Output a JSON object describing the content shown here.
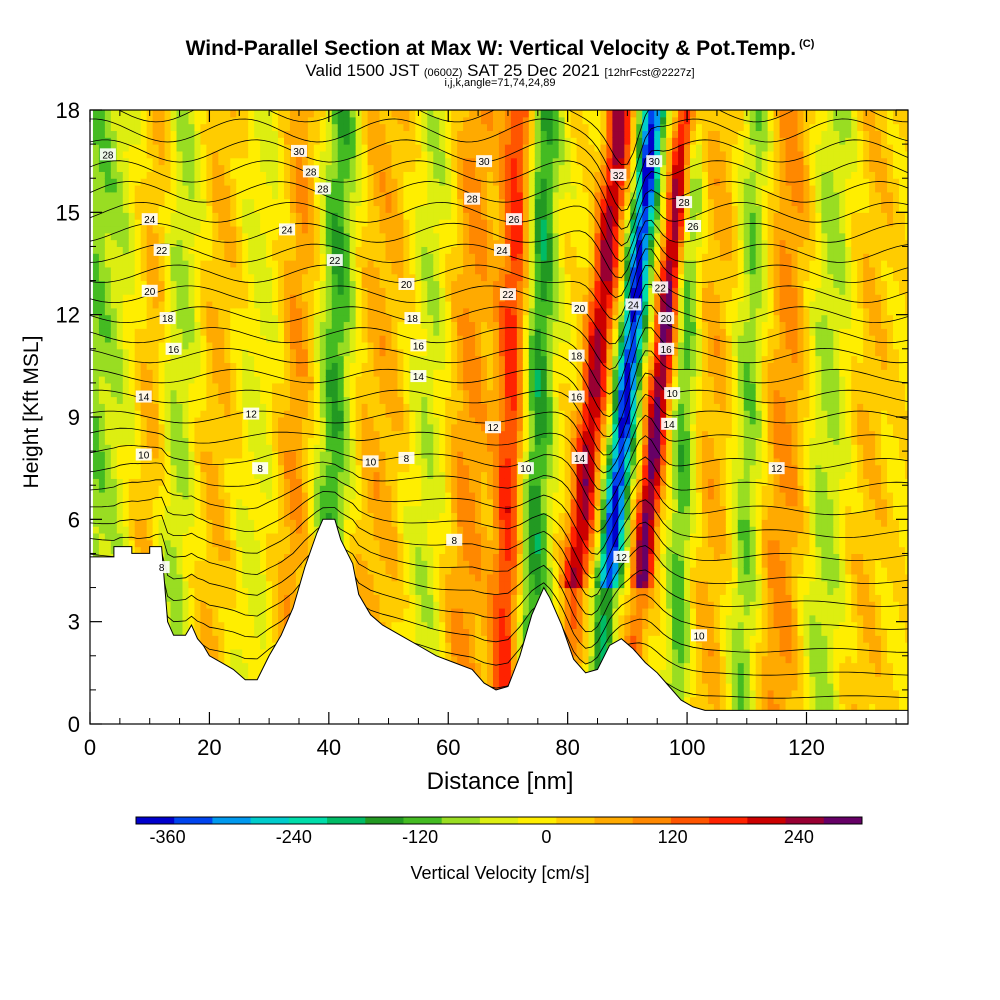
{
  "header": {
    "title": "Wind-Parallel Section at Max W: Vertical Velocity & Pot.Temp.",
    "title_tag": "(C)",
    "subtitle_a": "Valid 1500 JST",
    "subtitle_b": "(0600Z)",
    "subtitle_c": "SAT 25 Dec 2021",
    "subtitle_d": "[12hrFcst@2227z]",
    "params": "i,j,k,angle=71,74,24,89"
  },
  "chart_data": {
    "type": "heatmap",
    "title": "Wind-Parallel Section at Max W: Vertical Velocity & Pot.Temp.",
    "xlabel": "Distance [nm]",
    "ylabel": "Height [Kft MSL]",
    "colorbar_label": "Vertical Velocity [cm/s]",
    "xlim": [
      0,
      137
    ],
    "ylim": [
      0,
      18
    ],
    "xticks": [
      0,
      20,
      40,
      60,
      80,
      100,
      120
    ],
    "yticks": [
      0,
      3,
      6,
      9,
      12,
      15,
      18
    ],
    "colorbar": {
      "ticks": [
        -360,
        -240,
        -120,
        0,
        120,
        240
      ],
      "min": -390,
      "max": 300,
      "colors": [
        "#0000cc",
        "#0044ee",
        "#0099ee",
        "#00cccc",
        "#00ddaa",
        "#00bb66",
        "#229922",
        "#44bb22",
        "#99dd22",
        "#ddee11",
        "#ffee00",
        "#ffcc00",
        "#ffaa00",
        "#ff8800",
        "#ff5500",
        "#ff2200",
        "#cc0000",
        "#990033",
        "#660066"
      ],
      "bins": [
        -390,
        -360,
        -330,
        -300,
        -270,
        -240,
        -210,
        -180,
        -150,
        -120,
        -90,
        -60,
        -30,
        0,
        30,
        60,
        90,
        120,
        150,
        180,
        210,
        240,
        270,
        300
      ]
    },
    "terrain_kft": [
      [
        0,
        4.9
      ],
      [
        4,
        4.9
      ],
      [
        4,
        5.2
      ],
      [
        7,
        5.2
      ],
      [
        7,
        5.0
      ],
      [
        10,
        5.0
      ],
      [
        10,
        5.2
      ],
      [
        12,
        5.2
      ],
      [
        13,
        3.0
      ],
      [
        14,
        2.6
      ],
      [
        16,
        2.6
      ],
      [
        17,
        2.9
      ],
      [
        18,
        2.5
      ],
      [
        19,
        2.3
      ],
      [
        20,
        2.0
      ],
      [
        22,
        1.8
      ],
      [
        24,
        1.6
      ],
      [
        26,
        1.3
      ],
      [
        28,
        1.3
      ],
      [
        30,
        2.0
      ],
      [
        32,
        2.6
      ],
      [
        34,
        3.4
      ],
      [
        36,
        4.6
      ],
      [
        38,
        5.6
      ],
      [
        39,
        6.0
      ],
      [
        41,
        6.0
      ],
      [
        42,
        5.4
      ],
      [
        44,
        4.7
      ],
      [
        45,
        3.8
      ],
      [
        47,
        3.2
      ],
      [
        49,
        2.9
      ],
      [
        52,
        2.6
      ],
      [
        55,
        2.3
      ],
      [
        58,
        2.0
      ],
      [
        61,
        1.8
      ],
      [
        64,
        1.6
      ],
      [
        66,
        1.2
      ],
      [
        68,
        1.0
      ],
      [
        70,
        1.1
      ],
      [
        72,
        2.0
      ],
      [
        74,
        3.2
      ],
      [
        76,
        4.0
      ],
      [
        77,
        3.7
      ],
      [
        79,
        2.9
      ],
      [
        81,
        1.9
      ],
      [
        83,
        1.5
      ],
      [
        85,
        1.6
      ],
      [
        87,
        2.3
      ],
      [
        89,
        2.5
      ],
      [
        91,
        2.2
      ],
      [
        93,
        1.8
      ],
      [
        95,
        1.5
      ],
      [
        97,
        1.1
      ],
      [
        99,
        0.7
      ],
      [
        101,
        0.5
      ],
      [
        103,
        0.4
      ],
      [
        105,
        0.4
      ],
      [
        137,
        0.4
      ]
    ],
    "w_features": [
      {
        "x": 0,
        "w": 6,
        "amp": -90
      },
      {
        "x": 10,
        "w": 3,
        "amp": 70
      },
      {
        "x": 14,
        "w": 3.5,
        "amp": -80
      },
      {
        "x": 21,
        "w": 4,
        "amp": 50
      },
      {
        "x": 27,
        "w": 4,
        "amp": -40
      },
      {
        "x": 34,
        "w": 3,
        "amp": 80
      },
      {
        "x": 40.5,
        "w": 3,
        "amp": -140
      },
      {
        "x": 48,
        "w": 5,
        "amp": 60
      },
      {
        "x": 56,
        "w": 3.5,
        "amp": -60
      },
      {
        "x": 63,
        "w": 3.5,
        "amp": 90
      },
      {
        "x": 70,
        "w": 2.5,
        "amp": 170
      },
      {
        "x": 74.5,
        "w": 2.5,
        "amp": -160
      },
      {
        "x": 83.5,
        "w": 2.2,
        "amp": 240
      },
      {
        "x": 89,
        "w": 2.0,
        "amp": -370
      },
      {
        "x": 94.5,
        "w": 1.8,
        "amp": 280
      },
      {
        "x": 99,
        "w": 2.0,
        "amp": -120
      },
      {
        "x": 104,
        "w": 3.0,
        "amp": 60
      },
      {
        "x": 110,
        "w": 2.5,
        "amp": -100
      },
      {
        "x": 116,
        "w": 4.0,
        "amp": 90
      },
      {
        "x": 123,
        "w": 3.5,
        "amp": -80
      },
      {
        "x": 130,
        "w": 4.0,
        "amp": 40
      }
    ],
    "contour_labels": [
      {
        "text": "28",
        "x": 3,
        "y": 16.7
      },
      {
        "text": "30",
        "x": 35,
        "y": 16.8
      },
      {
        "text": "28",
        "x": 37,
        "y": 16.2
      },
      {
        "text": "28",
        "x": 39,
        "y": 15.7
      },
      {
        "text": "30",
        "x": 66,
        "y": 16.5
      },
      {
        "text": "28",
        "x": 64,
        "y": 15.4
      },
      {
        "text": "26",
        "x": 71,
        "y": 14.8
      },
      {
        "text": "24",
        "x": 69,
        "y": 13.9
      },
      {
        "text": "22",
        "x": 70,
        "y": 12.6
      },
      {
        "text": "32",
        "x": 88.5,
        "y": 16.1
      },
      {
        "text": "30",
        "x": 94.5,
        "y": 16.5
      },
      {
        "text": "28",
        "x": 99.5,
        "y": 15.3
      },
      {
        "text": "26",
        "x": 101,
        "y": 14.6
      },
      {
        "text": "24",
        "x": 10,
        "y": 14.8
      },
      {
        "text": "24",
        "x": 33,
        "y": 14.5
      },
      {
        "text": "22",
        "x": 12,
        "y": 13.9
      },
      {
        "text": "22",
        "x": 41,
        "y": 13.6
      },
      {
        "text": "20",
        "x": 10,
        "y": 12.7
      },
      {
        "text": "20",
        "x": 53,
        "y": 12.9
      },
      {
        "text": "20",
        "x": 82,
        "y": 12.2
      },
      {
        "text": "24",
        "x": 91,
        "y": 12.3
      },
      {
        "text": "22",
        "x": 95.5,
        "y": 12.8
      },
      {
        "text": "20",
        "x": 96.5,
        "y": 11.9
      },
      {
        "text": "18",
        "x": 13,
        "y": 11.9
      },
      {
        "text": "18",
        "x": 54,
        "y": 11.9
      },
      {
        "text": "18",
        "x": 81.5,
        "y": 10.8
      },
      {
        "text": "16",
        "x": 14,
        "y": 11.0
      },
      {
        "text": "16",
        "x": 55,
        "y": 11.1
      },
      {
        "text": "16",
        "x": 96.5,
        "y": 11.0
      },
      {
        "text": "14",
        "x": 9,
        "y": 9.6
      },
      {
        "text": "14",
        "x": 55,
        "y": 10.2
      },
      {
        "text": "16",
        "x": 81.5,
        "y": 9.6
      },
      {
        "text": "10",
        "x": 97.5,
        "y": 9.7
      },
      {
        "text": "14",
        "x": 97,
        "y": 8.8
      },
      {
        "text": "12",
        "x": 27,
        "y": 9.1
      },
      {
        "text": "12",
        "x": 67.5,
        "y": 8.7
      },
      {
        "text": "10",
        "x": 9,
        "y": 7.9
      },
      {
        "text": "10",
        "x": 47,
        "y": 7.7
      },
      {
        "text": "10",
        "x": 73,
        "y": 7.5
      },
      {
        "text": "14",
        "x": 82,
        "y": 7.8
      },
      {
        "text": "12",
        "x": 115,
        "y": 7.5
      },
      {
        "text": "8",
        "x": 28.5,
        "y": 7.5
      },
      {
        "text": "8",
        "x": 53,
        "y": 7.8
      },
      {
        "text": "8",
        "x": 61,
        "y": 5.4
      },
      {
        "text": "12",
        "x": 89,
        "y": 4.9
      },
      {
        "text": "8",
        "x": 12,
        "y": 4.6
      },
      {
        "text": "10",
        "x": 102,
        "y": 2.6
      }
    ]
  }
}
